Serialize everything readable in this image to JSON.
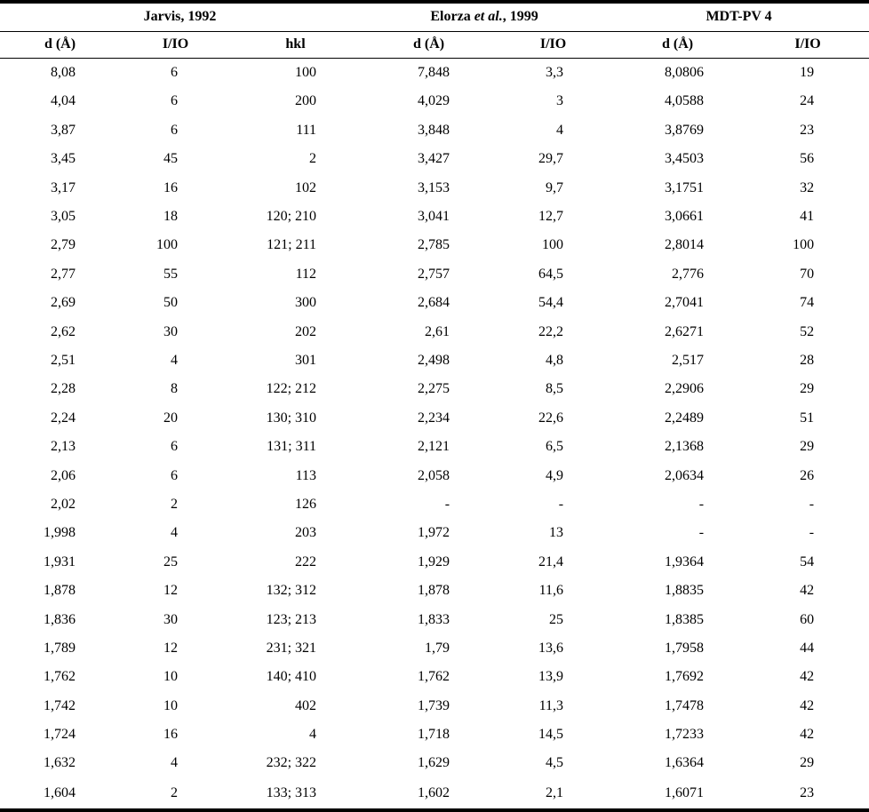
{
  "page": {
    "background_color": "#ffffff",
    "text_color": "#000000",
    "rule_color": "#000000"
  },
  "table": {
    "group_headers": {
      "jarvis": "Jarvis, 1992",
      "elorza_pre": "Elorza ",
      "elorza_italic": "et al.",
      "elorza_post": ", 1999",
      "mdtpv": "MDT-PV 4"
    },
    "columns": [
      "d (Å)",
      "I/IO",
      "hkl",
      "d (Å)",
      "I/IO",
      "d (Å)",
      "I/IO"
    ],
    "rows": [
      [
        "8,08",
        "6",
        "100",
        "7,848",
        "3,3",
        "8,0806",
        "19"
      ],
      [
        "4,04",
        "6",
        "200",
        "4,029",
        "3",
        "4,0588",
        "24"
      ],
      [
        "3,87",
        "6",
        "111",
        "3,848",
        "4",
        "3,8769",
        "23"
      ],
      [
        "3,45",
        "45",
        "2",
        "3,427",
        "29,7",
        "3,4503",
        "56"
      ],
      [
        "3,17",
        "16",
        "102",
        "3,153",
        "9,7",
        "3,1751",
        "32"
      ],
      [
        "3,05",
        "18",
        "120; 210",
        "3,041",
        "12,7",
        "3,0661",
        "41"
      ],
      [
        "2,79",
        "100",
        "121; 211",
        "2,785",
        "100",
        "2,8014",
        "100"
      ],
      [
        "2,77",
        "55",
        "112",
        "2,757",
        "64,5",
        "2,776",
        "70"
      ],
      [
        "2,69",
        "50",
        "300",
        "2,684",
        "54,4",
        "2,7041",
        "74"
      ],
      [
        "2,62",
        "30",
        "202",
        "2,61",
        "22,2",
        "2,6271",
        "52"
      ],
      [
        "2,51",
        "4",
        "301",
        "2,498",
        "4,8",
        "2,517",
        "28"
      ],
      [
        "2,28",
        "8",
        "122; 212",
        "2,275",
        "8,5",
        "2,2906",
        "29"
      ],
      [
        "2,24",
        "20",
        "130; 310",
        "2,234",
        "22,6",
        "2,2489",
        "51"
      ],
      [
        "2,13",
        "6",
        "131; 311",
        "2,121",
        "6,5",
        "2,1368",
        "29"
      ],
      [
        "2,06",
        "6",
        "113",
        "2,058",
        "4,9",
        "2,0634",
        "26"
      ],
      [
        "2,02",
        "2",
        "126",
        "-",
        "-",
        "-",
        "-"
      ],
      [
        "1,998",
        "4",
        "203",
        "1,972",
        "13",
        "-",
        "-"
      ],
      [
        "1,931",
        "25",
        "222",
        "1,929",
        "21,4",
        "1,9364",
        "54"
      ],
      [
        "1,878",
        "12",
        "132; 312",
        "1,878",
        "11,6",
        "1,8835",
        "42"
      ],
      [
        "1,836",
        "30",
        "123; 213",
        "1,833",
        "25",
        "1,8385",
        "60"
      ],
      [
        "1,789",
        "12",
        "231; 321",
        "1,79",
        "13,6",
        "1,7958",
        "44"
      ],
      [
        "1,762",
        "10",
        "140; 410",
        "1,762",
        "13,9",
        "1,7692",
        "42"
      ],
      [
        "1,742",
        "10",
        "402",
        "1,739",
        "11,3",
        "1,7478",
        "42"
      ],
      [
        "1,724",
        "16",
        "4",
        "1,718",
        "14,5",
        "1,7233",
        "42"
      ],
      [
        "1,632",
        "4",
        "232; 322",
        "1,629",
        "4,5",
        "1,6364",
        "29"
      ],
      [
        "1,604",
        "2",
        "133; 313",
        "1,602",
        "2,1",
        "1,6071",
        "23"
      ]
    ]
  }
}
